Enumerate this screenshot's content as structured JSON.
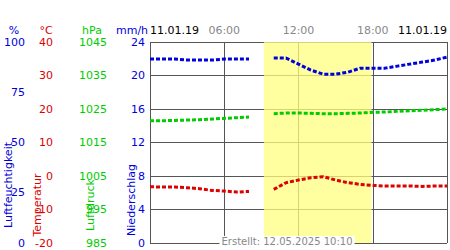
{
  "chart_data": {
    "type": "line",
    "x": [
      0,
      1,
      2,
      3,
      4,
      5,
      6,
      7,
      8,
      9,
      10,
      11,
      12,
      13,
      14,
      15,
      16,
      17,
      18,
      19,
      20,
      21,
      22,
      23,
      24
    ],
    "xlim": [
      0,
      24
    ],
    "xticks": [
      {
        "value": 0,
        "label": "11.01.19"
      },
      {
        "value": 6,
        "label": "06:00"
      },
      {
        "value": 12,
        "label": "12:00"
      },
      {
        "value": 18,
        "label": "18:00"
      },
      {
        "value": 24,
        "label": "11.01.19"
      }
    ],
    "y_axes": [
      {
        "unit": "%",
        "title": "Luftfeuchtigkeit",
        "color": "#0000dd",
        "lim": [
          0,
          100
        ],
        "ticks": [
          0,
          25,
          50,
          75,
          100
        ]
      },
      {
        "unit": "°C",
        "title": "Temperatur",
        "color": "#dd0000",
        "lim": [
          -20,
          40
        ],
        "ticks": [
          -20,
          -10,
          0,
          10,
          20,
          30,
          40
        ]
      },
      {
        "unit": "hPa",
        "title": "Luftdruck",
        "color": "#00cc00",
        "lim": [
          985,
          1045
        ],
        "ticks": [
          985,
          995,
          1005,
          1015,
          1025,
          1035,
          1045
        ]
      },
      {
        "unit": "mm/h",
        "title": "Niederschlag",
        "color": "#0000dd",
        "lim": [
          0,
          24
        ],
        "ticks": [
          0,
          4,
          8,
          12,
          16,
          20,
          24
        ]
      }
    ],
    "series": [
      {
        "axis": 0,
        "color": "#0000dd",
        "values": [
          91.5,
          91.5,
          91.5,
          91,
          91,
          91,
          91.5,
          91.5,
          91.5,
          null,
          92,
          92,
          89,
          86,
          84,
          84,
          85,
          87,
          87,
          87,
          88,
          89,
          90,
          91,
          92.5
        ]
      },
      {
        "axis": 1,
        "color": "#dd0000",
        "values": [
          -3.2,
          -3.3,
          -3.3,
          -3.5,
          -3.8,
          -4.3,
          -4.5,
          -4.8,
          -4.6,
          null,
          -4,
          -2,
          -1.2,
          -0.5,
          -0.2,
          -1.2,
          -2,
          -2.5,
          -2.8,
          -3,
          -3,
          -3,
          -3.1,
          -3,
          -3
        ]
      },
      {
        "axis": 2,
        "color": "#00cc00",
        "values": [
          1021.5,
          1021.5,
          1021.6,
          1021.7,
          1021.8,
          1022,
          1022.2,
          1022.4,
          1022.6,
          null,
          1023.6,
          1023.8,
          1023.8,
          1023.7,
          1023.6,
          1023.6,
          1023.7,
          1023.8,
          1024,
          1024.1,
          1024.3,
          1024.5,
          1024.6,
          1024.8,
          1025
        ]
      }
    ],
    "highlight": {
      "x": [
        9.2,
        17.9
      ],
      "color": "#ffff80"
    },
    "footer": "Erstellt: 12.05.2025 10:10",
    "grid": true,
    "line_style": "dashed",
    "marker": "none"
  }
}
